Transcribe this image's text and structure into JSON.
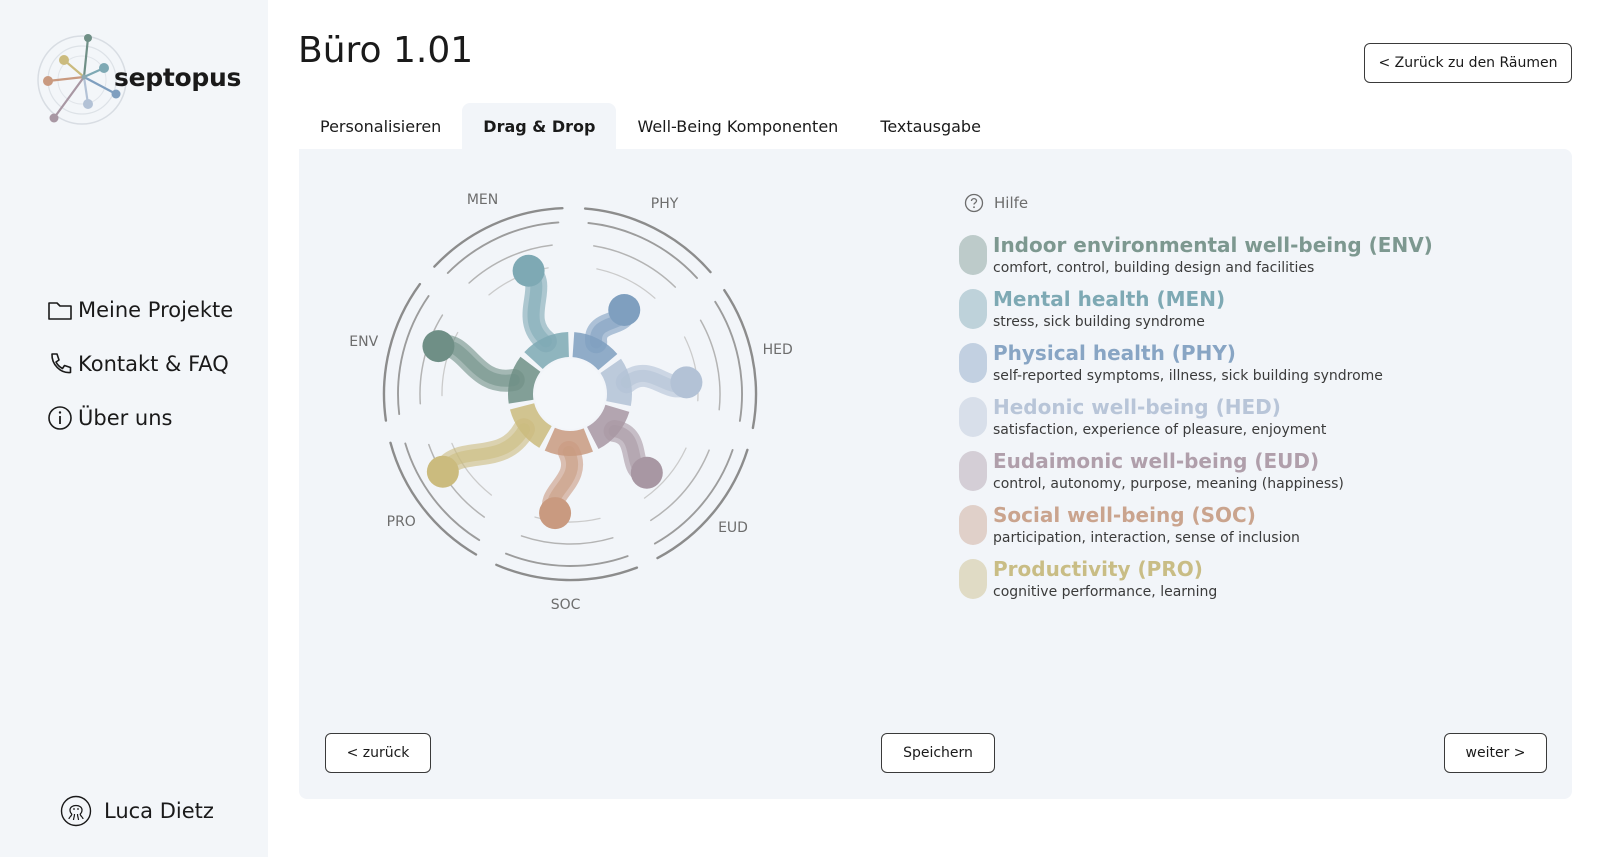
{
  "app": {
    "name": "septopus"
  },
  "sidebar": {
    "items": [
      {
        "label": "Meine Projekte",
        "icon": "folder-icon"
      },
      {
        "label": "Kontakt & FAQ",
        "icon": "phone-icon"
      },
      {
        "label": "Über uns",
        "icon": "info-icon"
      }
    ],
    "user": {
      "name": "Luca Dietz",
      "icon": "octopus-avatar-icon"
    }
  },
  "header": {
    "title": "Büro 1.01",
    "back_button": "< Zurück zu den Räumen"
  },
  "tabs": [
    {
      "label": "Personalisieren",
      "active": false
    },
    {
      "label": "Drag & Drop",
      "active": true
    },
    {
      "label": "Well-Being Komponenten",
      "active": false
    },
    {
      "label": "Textausgabe",
      "active": false
    }
  ],
  "help": {
    "label": "Hilfe",
    "icon": "help-circle-icon"
  },
  "chart_data": {
    "type": "radial-drag-drop",
    "axes": [
      "ENV",
      "MEN",
      "PHY",
      "HED",
      "EUD",
      "SOC",
      "PRO"
    ],
    "colors": {
      "ENV": "#6f8f86",
      "MEN": "#7ea9b4",
      "PHY": "#7f9fbf",
      "HED": "#b3c2d6",
      "EUD": "#a897a3",
      "SOC": "#c99a80",
      "PRO": "#cbbb7e"
    }
  },
  "legend": [
    {
      "title": "Indoor environmental well-being (ENV)",
      "desc": "comfort, control, building design and facilities",
      "color": "#7d9890"
    },
    {
      "title": "Mental health (MEN)",
      "desc": "stress, sick building syndrome",
      "color": "#7ea9b4"
    },
    {
      "title": "Physical health (PHY)",
      "desc": "self-reported symptoms, illness, sick building syndrome",
      "color": "#88a5c4"
    },
    {
      "title": "Hedonic well-being (HED)",
      "desc": "satisfaction, experience of pleasure, enjoyment",
      "color": "#b8c5d8"
    },
    {
      "title": "Eudaimonic well-being (EUD)",
      "desc": "control, autonomy, purpose, meaning (happiness)",
      "color": "#b09fab"
    },
    {
      "title": "Social well-being (SOC)",
      "desc": "participation, interaction, sense of inclusion",
      "color": "#caa48e"
    },
    {
      "title": "Productivity (PRO)",
      "desc": "cognitive performance, learning",
      "color": "#c9bd85"
    }
  ],
  "buttons": {
    "back": "< zurück",
    "save": "Speichern",
    "next": "weiter >"
  }
}
